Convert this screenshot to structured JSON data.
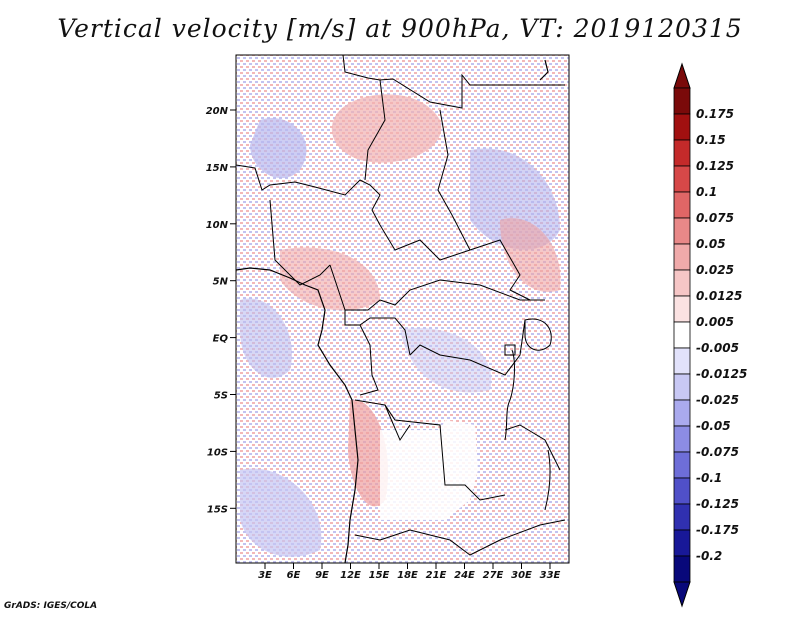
{
  "title": "Vertical velocity [m/s] at 900hPa, VT: 2019120315",
  "credit": "GrADS: IGES/COLA",
  "map": {
    "lat_ticks": [
      "20N",
      "15N",
      "10N",
      "5N",
      "EQ",
      "5S",
      "10S",
      "15S"
    ],
    "lon_ticks": [
      "3E",
      "6E",
      "9E",
      "12E",
      "15E",
      "18E",
      "21E",
      "24E",
      "27E",
      "30E",
      "33E"
    ]
  },
  "colorbar": {
    "labels": [
      "0.175",
      "0.15",
      "0.125",
      "0.1",
      "0.075",
      "0.05",
      "0.025",
      "0.0125",
      "0.005",
      "-0.005",
      "-0.0125",
      "-0.025",
      "-0.05",
      "-0.075",
      "-0.1",
      "-0.125",
      "-0.175",
      "-0.2"
    ],
    "colors": [
      "#7a0a0a",
      "#a11010",
      "#c42a2a",
      "#d64848",
      "#e06666",
      "#e88888",
      "#f0aaaa",
      "#f6c6c6",
      "#fbe2e2",
      "#ffffff",
      "#e2e2fb",
      "#c8c8f4",
      "#aaaaee",
      "#8c8ce4",
      "#6e6ed8",
      "#5050c8",
      "#3030b0",
      "#181898",
      "#08087a"
    ],
    "top_color": "#7a0a0a",
    "bottom_color": "#08087a"
  }
}
